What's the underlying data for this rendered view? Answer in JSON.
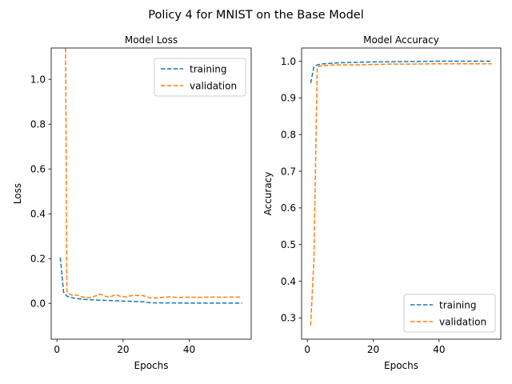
{
  "suptitle": "Policy 4 for MNIST on the Base Model",
  "colors": {
    "training": "#1f77b4",
    "validation": "#ff7f0e"
  },
  "chart_data": [
    {
      "type": "line",
      "title": "Model Loss",
      "xlabel": "Epochs",
      "ylabel": "Loss",
      "xlim": [
        -1.75,
        58.75
      ],
      "ylim": [
        -0.16,
        1.14
      ],
      "xticks": [
        0,
        20,
        40
      ],
      "yticks": [
        0.0,
        0.2,
        0.4,
        0.6,
        0.8,
        1.0
      ],
      "ytick_labels": [
        "0.0",
        "0.2",
        "0.4",
        "0.6",
        "0.8",
        "1.0"
      ],
      "legend": "upper right",
      "series": [
        {
          "name": "training",
          "x": [
            1,
            2,
            3,
            4,
            5,
            6,
            7,
            8,
            10,
            12,
            15,
            18,
            20,
            23,
            26,
            28,
            30,
            35,
            40,
            45,
            50,
            56
          ],
          "y": [
            0.205,
            0.05,
            0.032,
            0.027,
            0.024,
            0.022,
            0.02,
            0.018,
            0.016,
            0.015,
            0.013,
            0.012,
            0.01,
            0.009,
            0.007,
            0.003,
            0.002,
            0.002,
            0.001,
            0.001,
            0.001,
            0.001
          ]
        },
        {
          "name": "validation",
          "x": [
            2.6,
            3,
            4,
            5,
            6,
            7,
            8,
            9,
            10,
            11,
            12,
            13,
            14,
            15,
            16,
            17,
            18,
            19,
            20,
            21,
            22,
            23,
            24,
            25,
            26,
            27,
            28,
            29,
            30,
            31,
            32,
            33,
            34,
            35,
            36,
            37,
            38,
            39,
            40,
            42,
            44,
            46,
            48,
            50,
            52,
            54,
            56
          ],
          "y": [
            1.14,
            0.05,
            0.04,
            0.035,
            0.038,
            0.03,
            0.028,
            0.027,
            0.025,
            0.03,
            0.035,
            0.042,
            0.035,
            0.03,
            0.028,
            0.035,
            0.038,
            0.032,
            0.03,
            0.028,
            0.033,
            0.035,
            0.036,
            0.034,
            0.035,
            0.03,
            0.025,
            0.025,
            0.024,
            0.025,
            0.027,
            0.028,
            0.029,
            0.028,
            0.027,
            0.026,
            0.027,
            0.027,
            0.028,
            0.027,
            0.027,
            0.028,
            0.028,
            0.027,
            0.028,
            0.028,
            0.028
          ]
        }
      ]
    },
    {
      "type": "line",
      "title": "Model Accuracy",
      "xlabel": "Epochs",
      "ylabel": "Accuracy",
      "xlim": [
        -1.75,
        58.75
      ],
      "ylim": [
        0.242,
        1.036
      ],
      "xticks": [
        0,
        20,
        40
      ],
      "yticks": [
        0.3,
        0.4,
        0.5,
        0.6,
        0.7,
        0.8,
        0.9,
        1.0
      ],
      "ytick_labels": [
        "0.3",
        "0.4",
        "0.5",
        "0.6",
        "0.7",
        "0.8",
        "0.9",
        "1.0"
      ],
      "legend": "lower right",
      "series": [
        {
          "name": "training",
          "x": [
            1,
            2,
            3,
            5,
            10,
            20,
            30,
            40,
            50,
            56
          ],
          "y": [
            0.94,
            0.985,
            0.99,
            0.993,
            0.996,
            0.998,
            0.999,
            1.0,
            1.0,
            1.0
          ]
        },
        {
          "name": "validation",
          "x": [
            1,
            2,
            3,
            4,
            5,
            8,
            10,
            15,
            20,
            25,
            30,
            40,
            50,
            56
          ],
          "y": [
            0.28,
            0.46,
            0.985,
            0.987,
            0.988,
            0.99,
            0.99,
            0.99,
            0.991,
            0.992,
            0.992,
            0.993,
            0.993,
            0.993
          ]
        }
      ]
    }
  ]
}
